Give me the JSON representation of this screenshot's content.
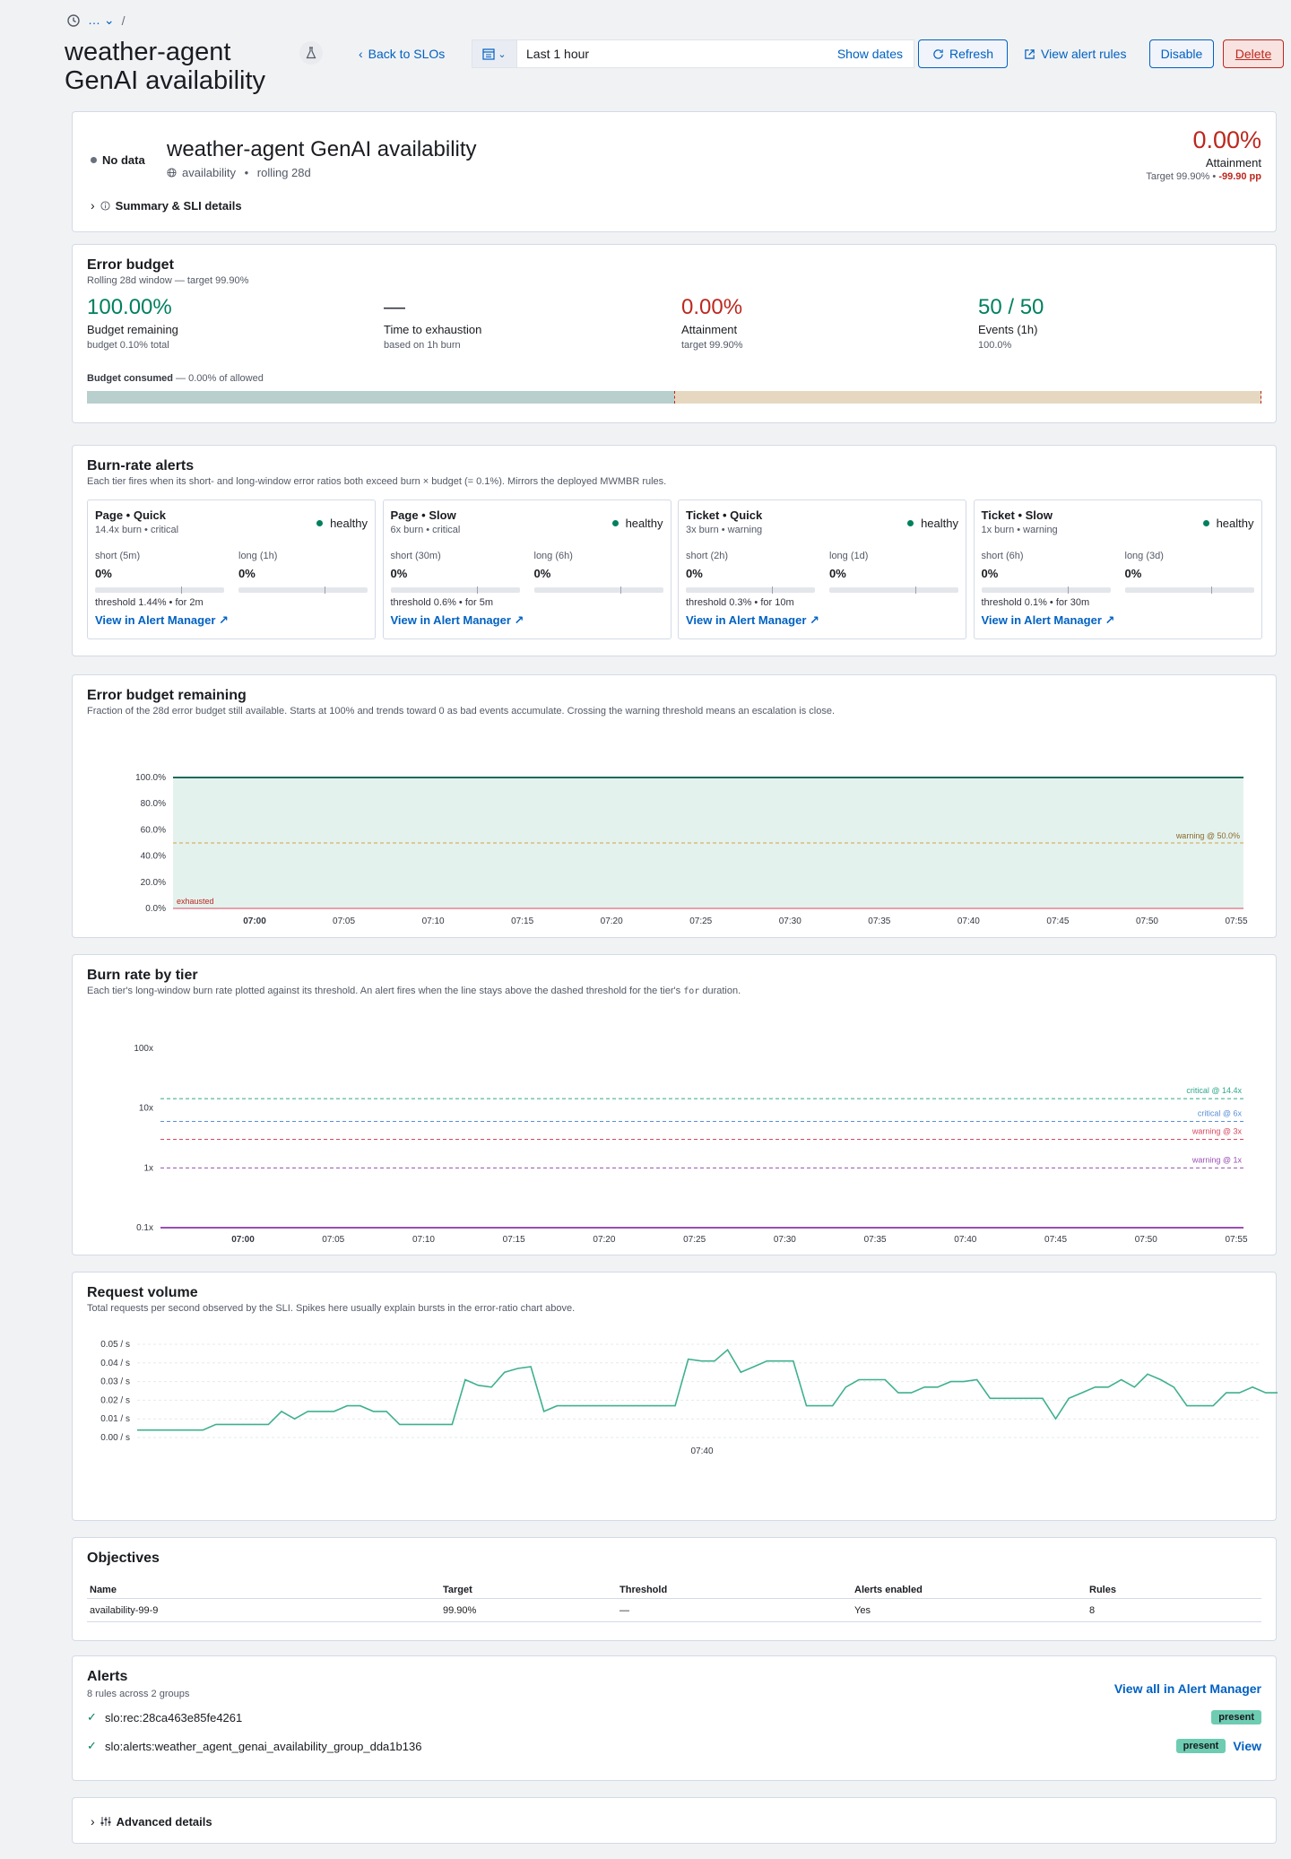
{
  "header": {
    "breadcrumb_dots": "…",
    "breadcrumb_sep": "/",
    "title": "weather-agent GenAI availability",
    "back_label": "Back to SLOs",
    "time_range": "Last 1 hour",
    "show_dates": "Show dates",
    "refresh": "Refresh",
    "view_alert_rules": "View alert rules",
    "disable": "Disable",
    "delete": "Delete"
  },
  "summary": {
    "status": "No data",
    "name": "weather-agent GenAI availability",
    "sli_type": "availability",
    "window": "rolling 28d",
    "attainment": "0.00%",
    "attainment_label": "Attainment",
    "target_text": "Target 99.90% •",
    "delta": "-99.90 pp",
    "details_toggle": "Summary & SLI details"
  },
  "error_budget": {
    "title": "Error budget",
    "subtitle": "Rolling 28d window — target 99.90%",
    "stats": [
      {
        "value": "100.00%",
        "label": "Budget remaining",
        "sub": "budget 0.10% total",
        "color": "#00805f"
      },
      {
        "value": "—",
        "label": "Time to exhaustion",
        "sub": "based on 1h burn",
        "color": "#343741"
      },
      {
        "value": "0.00%",
        "label": "Attainment",
        "sub": "target 99.90%",
        "color": "#bd271e"
      },
      {
        "value": "50 / 50",
        "label": "Events (1h)",
        "sub": "100.0%",
        "color": "#00805f"
      }
    ],
    "consumed_label": "Budget consumed",
    "consumed_text": "— 0.00% of allowed",
    "target_fraction": 0.5
  },
  "burn_alerts": {
    "title": "Burn-rate alerts",
    "subtitle": "Each tier fires when its short- and long-window error ratios both exceed burn × budget (= 0.1%). Mirrors the deployed MWMBR rules.",
    "tiers": [
      {
        "name": "Page • Quick",
        "sub": "14.4x burn • critical",
        "status": "healthy",
        "short_label": "short (5m)",
        "short_value": "0%",
        "long_label": "long (1h)",
        "long_value": "0%",
        "threshold": "threshold 1.44% • for 2m",
        "link": "View in Alert Manager ↗"
      },
      {
        "name": "Page • Slow",
        "sub": "6x burn • critical",
        "status": "healthy",
        "short_label": "short (30m)",
        "short_value": "0%",
        "long_label": "long (6h)",
        "long_value": "0%",
        "threshold": "threshold 0.6% • for 5m",
        "link": "View in Alert Manager ↗"
      },
      {
        "name": "Ticket • Quick",
        "sub": "3x burn • warning",
        "status": "healthy",
        "short_label": "short (2h)",
        "short_value": "0%",
        "long_label": "long (1d)",
        "long_value": "0%",
        "threshold": "threshold 0.3% • for 10m",
        "link": "View in Alert Manager ↗"
      },
      {
        "name": "Ticket • Slow",
        "sub": "1x burn • warning",
        "status": "healthy",
        "short_label": "short (6h)",
        "short_value": "0%",
        "long_label": "long (3d)",
        "long_value": "0%",
        "threshold": "threshold 0.1% • for 30m",
        "link": "View in Alert Manager ↗"
      }
    ]
  },
  "chart_data": [
    {
      "type": "area",
      "title": "Error budget remaining",
      "subtitle": "Fraction of the 28d error budget still available. Starts at 100% and trends toward 0 as bad events accumulate. Crossing the warning threshold means an escalation is close.",
      "x_ticks": [
        "07:00",
        "07:05",
        "07:10",
        "07:15",
        "07:20",
        "07:25",
        "07:30",
        "07:35",
        "07:40",
        "07:45",
        "07:50",
        "07:55"
      ],
      "y_ticks": [
        "0.0%",
        "20.0%",
        "40.0%",
        "60.0%",
        "80.0%",
        "100.0%"
      ],
      "ylim": [
        0,
        100
      ],
      "series": [
        {
          "values": [
            100,
            100
          ]
        }
      ],
      "warning_value": 50,
      "warning_label": "warning @ 50.0%",
      "exhausted_label": "exhausted"
    },
    {
      "type": "line",
      "title": "Burn rate by tier",
      "subtitle_pre": "Each tier's long-window burn rate plotted against its threshold. An alert fires when the line stays above the dashed threshold for the tier's",
      "subtitle_code": "for",
      "subtitle_post": "duration.",
      "x_ticks": [
        "07:00",
        "07:05",
        "07:10",
        "07:15",
        "07:20",
        "07:25",
        "07:30",
        "07:35",
        "07:40",
        "07:45",
        "07:50",
        "07:55"
      ],
      "y_ticks": [
        "0.1x",
        "1x",
        "10x",
        "100x"
      ],
      "yscale": "log",
      "ylim": [
        0.1,
        100
      ],
      "thresholds": [
        {
          "value": 14.4,
          "label": "critical @ 14.4x",
          "color": "#2fa88c"
        },
        {
          "value": 6,
          "label": "critical @ 6x",
          "color": "#5a8fd8"
        },
        {
          "value": 3,
          "label": "warning @ 3x",
          "color": "#d9485f"
        },
        {
          "value": 1,
          "label": "warning @ 1x",
          "color": "#9a4fb5"
        }
      ]
    },
    {
      "type": "line",
      "title": "Request volume",
      "subtitle": "Total requests per second observed by the SLI. Spikes here usually explain bursts in the error-ratio chart above.",
      "y_ticks": [
        "0.00 / s",
        "0.01 / s",
        "0.02 / s",
        "0.03 / s",
        "0.04 / s",
        "0.05 / s"
      ],
      "ylim": [
        0,
        0.05
      ],
      "x_ticks": [
        "07:40"
      ],
      "series": [
        {
          "values": [
            0.004,
            0.004,
            0.004,
            0.004,
            0.004,
            0.004,
            0.007,
            0.007,
            0.007,
            0.007,
            0.007,
            0.014,
            0.01,
            0.014,
            0.014,
            0.014,
            0.017,
            0.017,
            0.014,
            0.014,
            0.007,
            0.007,
            0.007,
            0.007,
            0.007,
            0.031,
            0.028,
            0.027,
            0.035,
            0.037,
            0.038,
            0.014,
            0.017,
            0.017,
            0.017,
            0.017,
            0.017,
            0.017,
            0.017,
            0.017,
            0.017,
            0.017,
            0.042,
            0.041,
            0.041,
            0.047,
            0.035,
            0.038,
            0.041,
            0.041,
            0.041,
            0.017,
            0.017,
            0.017,
            0.027,
            0.031,
            0.031,
            0.031,
            0.024,
            0.024,
            0.027,
            0.027,
            0.03,
            0.03,
            0.031,
            0.021,
            0.021,
            0.021,
            0.021,
            0.021,
            0.01,
            0.021,
            0.024,
            0.027,
            0.027,
            0.031,
            0.027,
            0.034,
            0.031,
            0.027,
            0.017,
            0.017,
            0.017,
            0.024,
            0.024,
            0.027,
            0.024,
            0.024,
            0.02
          ]
        }
      ]
    }
  ],
  "objectives": {
    "title": "Objectives",
    "columns": [
      "Name",
      "Target",
      "Threshold",
      "Alerts enabled",
      "Rules"
    ],
    "rows": [
      [
        "availability-99-9",
        "99.90%",
        "—",
        "Yes",
        "8"
      ]
    ]
  },
  "alerts": {
    "title": "Alerts",
    "subtitle": "8 rules across 2 groups",
    "view_all": "View all in Alert Manager",
    "rows": [
      {
        "name": "slo:rec:28ca463e85fe4261",
        "badge": "present",
        "link": ""
      },
      {
        "name": "slo:alerts:weather_agent_genai_availability_group_dda1b136",
        "badge": "present",
        "link": "View"
      }
    ]
  },
  "advanced": {
    "label": "Advanced details"
  }
}
